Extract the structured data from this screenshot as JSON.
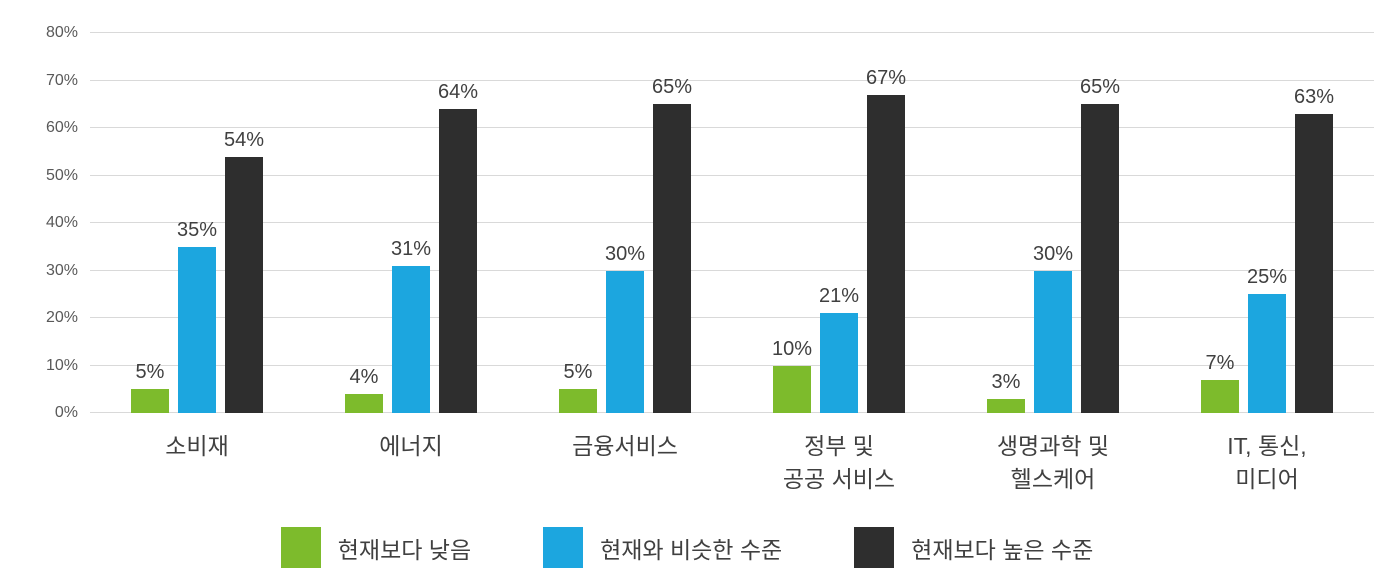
{
  "chart_data": {
    "type": "bar",
    "title": "",
    "categories": [
      "소비재",
      "에너지",
      "금융서비스",
      "정부 및\n공공 서비스",
      "생명과학 및\n헬스케어",
      "IT, 통신,\n미디어"
    ],
    "series": [
      {
        "name": "현재보다 낮음",
        "color": "#7dbb2c",
        "values": [
          5,
          4,
          5,
          10,
          3,
          7
        ]
      },
      {
        "name": "현재와 비슷한 수준",
        "color": "#1ca6df",
        "values": [
          35,
          31,
          30,
          21,
          30,
          25
        ]
      },
      {
        "name": "현재보다 높은 수준",
        "color": "#2e2e2e",
        "values": [
          54,
          64,
          65,
          67,
          65,
          63
        ]
      }
    ],
    "value_label_suffix": "%",
    "ylim": [
      0,
      80
    ],
    "ytick_step": 10,
    "yticks": [
      "0%",
      "10%",
      "20%",
      "30%",
      "40%",
      "50%",
      "60%",
      "70%",
      "80%"
    ],
    "grid": true,
    "legend_position": "bottom"
  },
  "colors": {
    "background": "#ffffff",
    "gridline": "#d9d9d9",
    "axis_text": "#595959",
    "value_text": "#404040",
    "category_text": "#404040",
    "legend_text": "#404040"
  }
}
